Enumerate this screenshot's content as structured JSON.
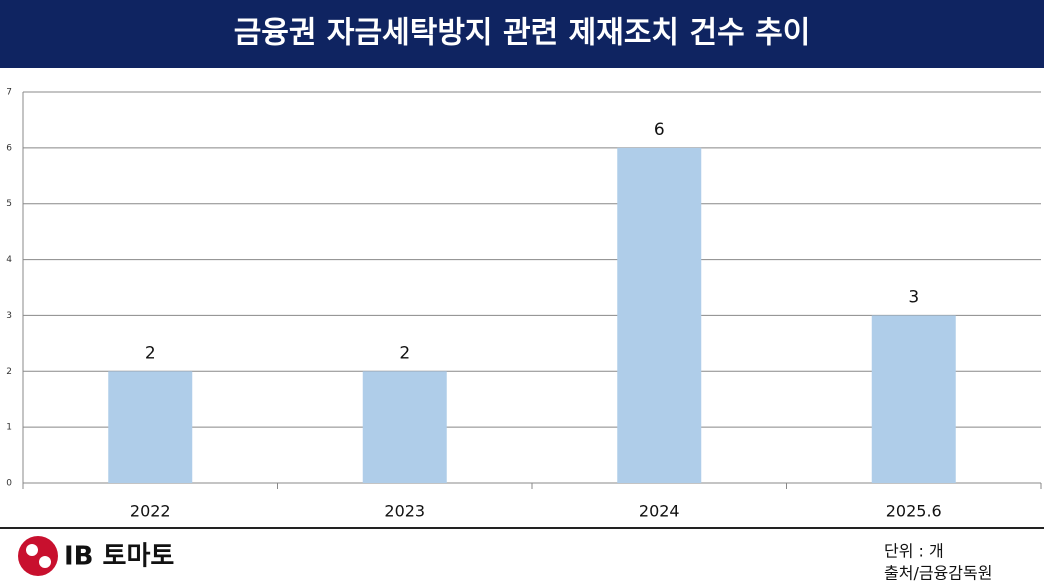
{
  "chart_data": {
    "type": "bar",
    "title": "금융권 자금세탁방지 관련 제재조치 건수 추이",
    "categories": [
      "2022",
      "2023",
      "2024",
      "2025.6"
    ],
    "values": [
      2,
      2,
      6,
      3
    ],
    "color": "#afcde9",
    "ylim": [
      0,
      7
    ],
    "yticks": [
      0,
      1,
      2,
      3,
      4,
      5,
      6,
      7
    ],
    "grid": true,
    "unit": "단위 : 개",
    "source": "출처/금융감독원"
  },
  "logo": {
    "text": "IB 토마토"
  }
}
